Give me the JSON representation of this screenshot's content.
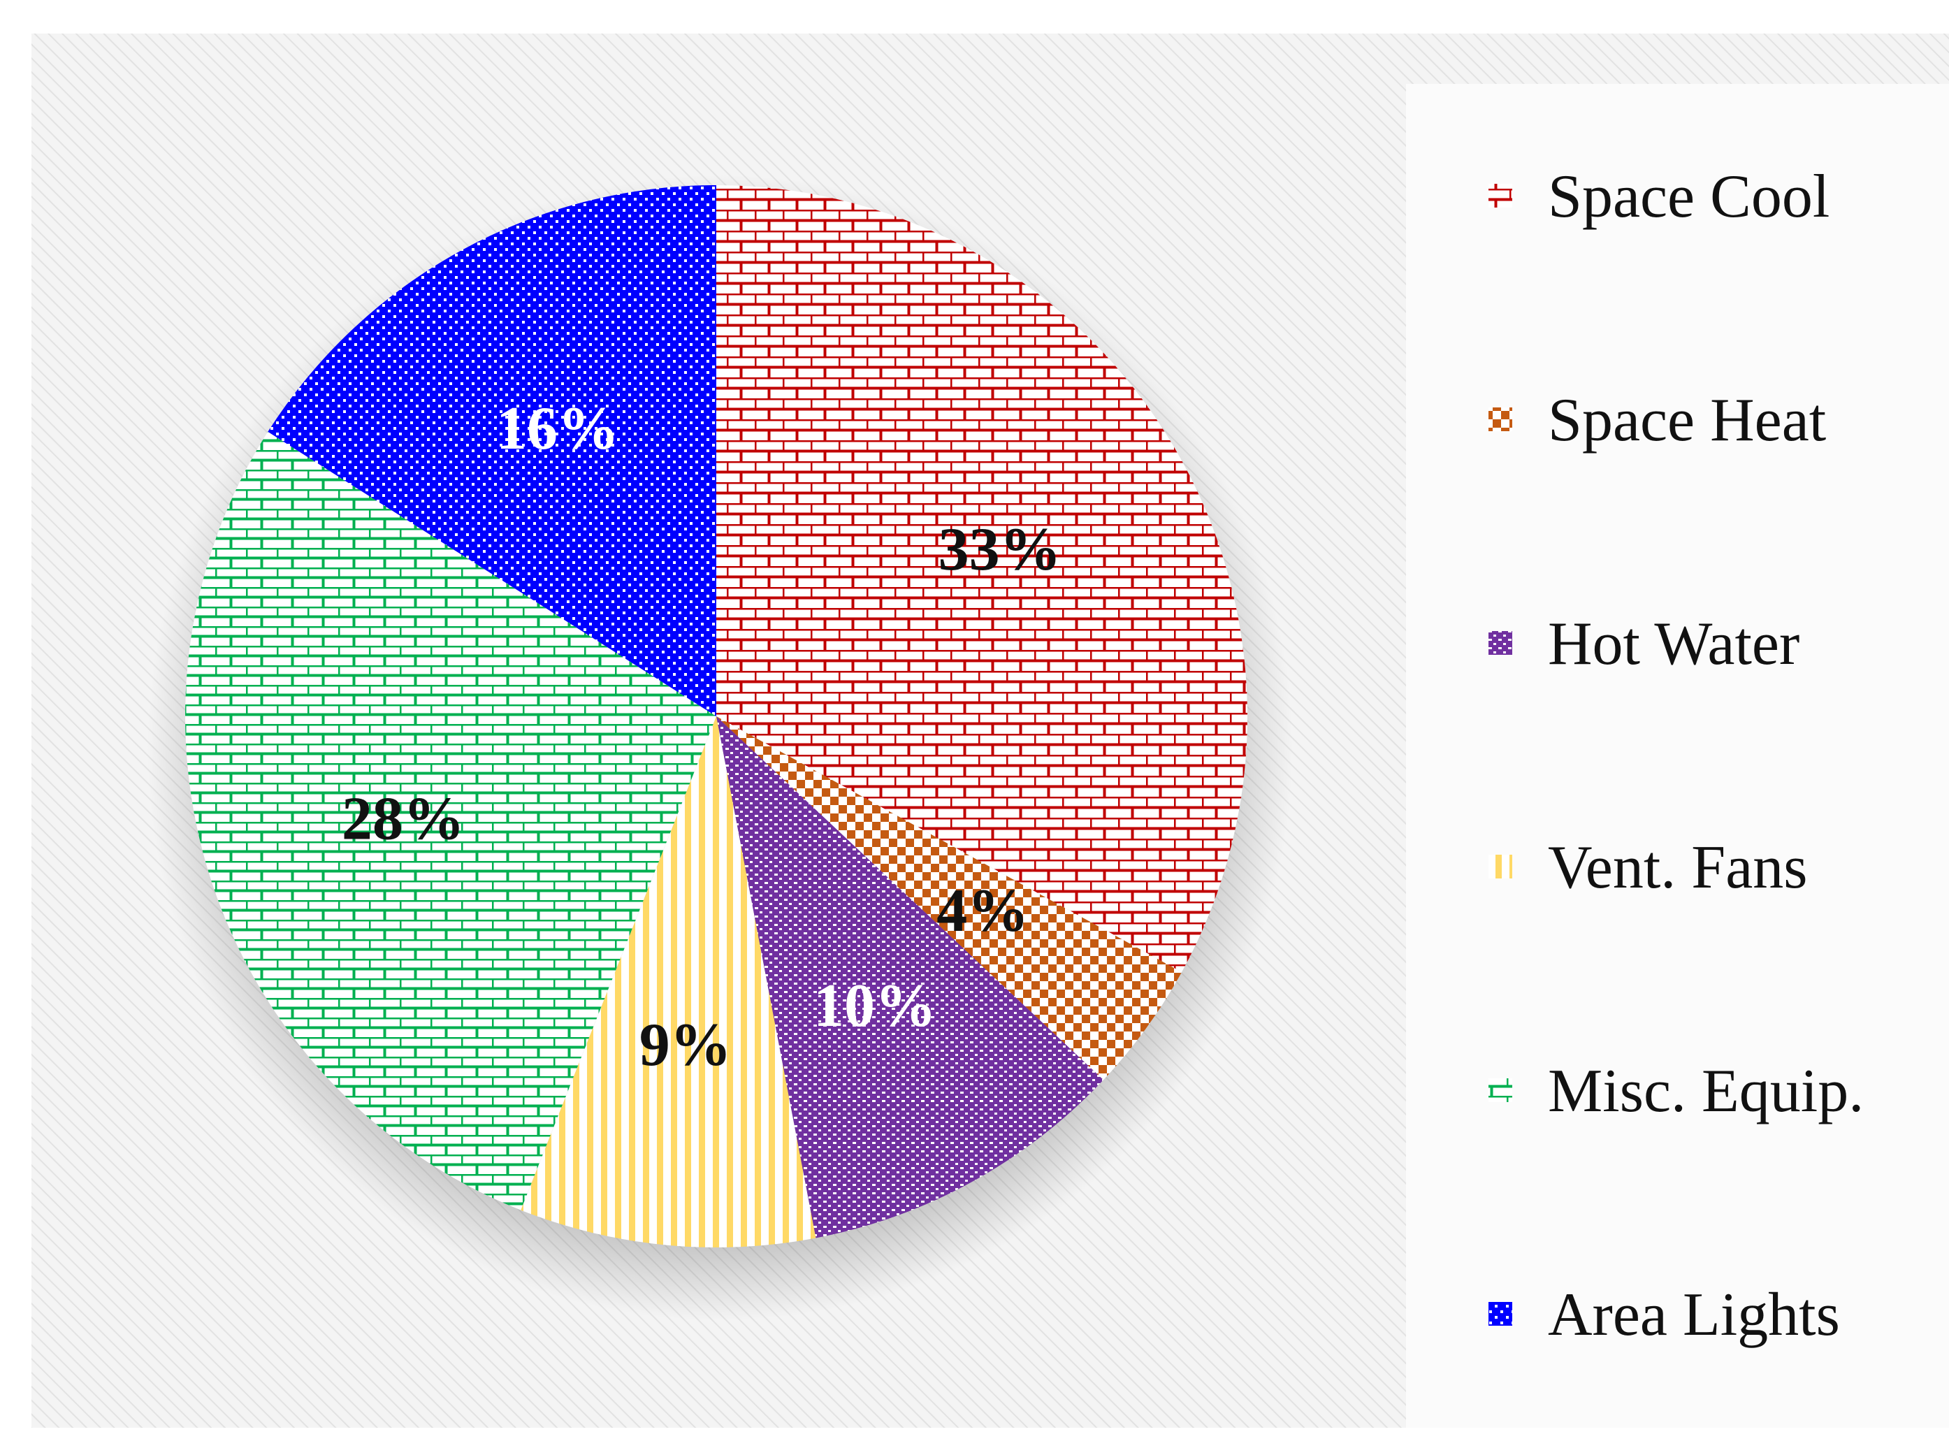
{
  "chart_data": {
    "type": "pie",
    "title": "",
    "legend_position": "right",
    "slices": [
      {
        "name": "Space Cool",
        "value": 33,
        "label": "33%",
        "color": "#c00000",
        "pattern": "brick",
        "label_color": "#111111",
        "legend_icon": "brick-swatch-icon"
      },
      {
        "name": "Space Heat",
        "value": 4,
        "label": "4%",
        "color": "#c55a11",
        "pattern": "checker",
        "label_color": "#111111",
        "legend_icon": "checker-swatch-icon"
      },
      {
        "name": "Hot Water",
        "value": 10,
        "label": "10%",
        "color": "#7030a0",
        "pattern": "dots",
        "label_color": "#ffffff",
        "legend_icon": "dots-swatch-icon"
      },
      {
        "name": "Vent. Fans",
        "value": 9,
        "label": "9%",
        "color": "#ffd966",
        "pattern": "vlines",
        "label_color": "#111111",
        "legend_icon": "vlines-swatch-icon"
      },
      {
        "name": "Misc. Equip.",
        "value": 28,
        "label": "28%",
        "color": "#00b050",
        "pattern": "hbrick",
        "label_color": "#111111",
        "legend_icon": "hbrick-swatch-icon"
      },
      {
        "name": "Area Lights",
        "value": 16,
        "label": "16%",
        "color": "#0000ff",
        "pattern": "grid",
        "label_color": "#ffffff",
        "legend_icon": "grid-swatch-icon"
      }
    ]
  }
}
